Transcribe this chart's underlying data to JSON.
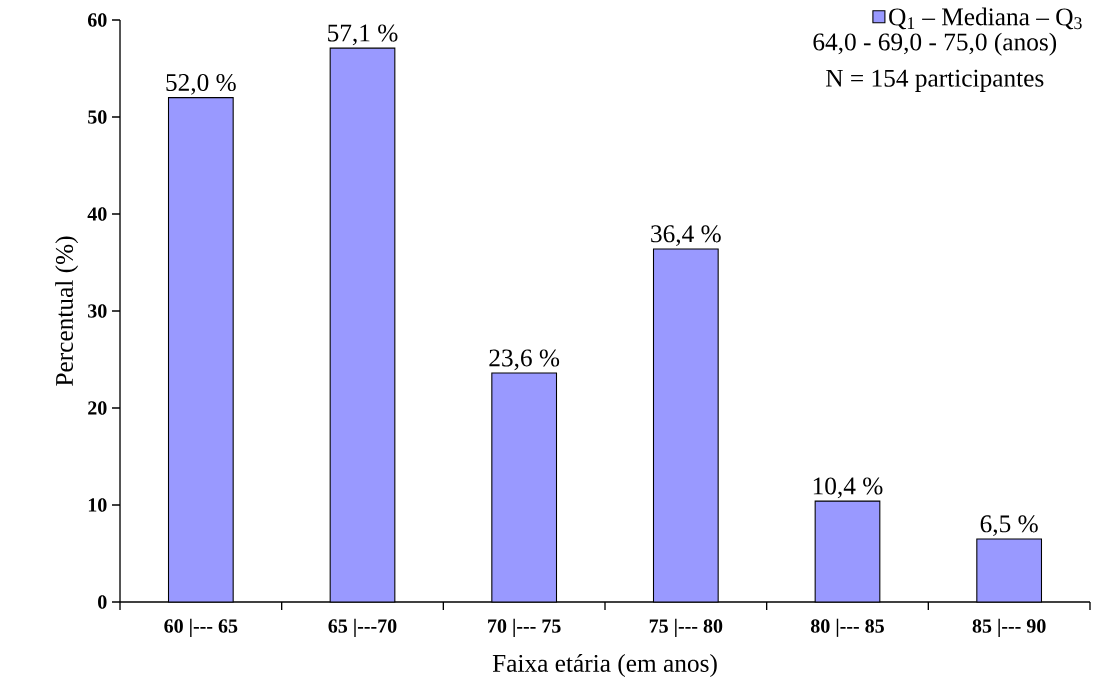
{
  "chart_data": {
    "type": "bar",
    "xlabel": "Faixa etária (em anos)",
    "ylabel": "Percentual (%)",
    "categories": [
      "60 |--- 65",
      "65 |---70",
      "70 |--- 75",
      "75 |--- 80",
      "80 |--- 85",
      "85 |--- 90"
    ],
    "series": [
      {
        "name": "Q$_{1}$ – Mediana – Q$_{3}$",
        "color": "#9999ff",
        "values": [
          52.0,
          57.1,
          23.6,
          36.4,
          10.4,
          6.5
        ],
        "value_labels": [
          "52,0 %",
          "57,1 %",
          "23,6 %",
          "36,4 %",
          "10,4 %",
          "6,5 %"
        ]
      }
    ],
    "annotations": [
      "64,0 - 69,0 - 75,0 (anos)",
      "N = 154 participantes"
    ],
    "ylim": [
      0,
      60
    ],
    "yticks": [
      0,
      10,
      20,
      30,
      40,
      50,
      60
    ],
    "grid": false,
    "legend": "top right"
  }
}
